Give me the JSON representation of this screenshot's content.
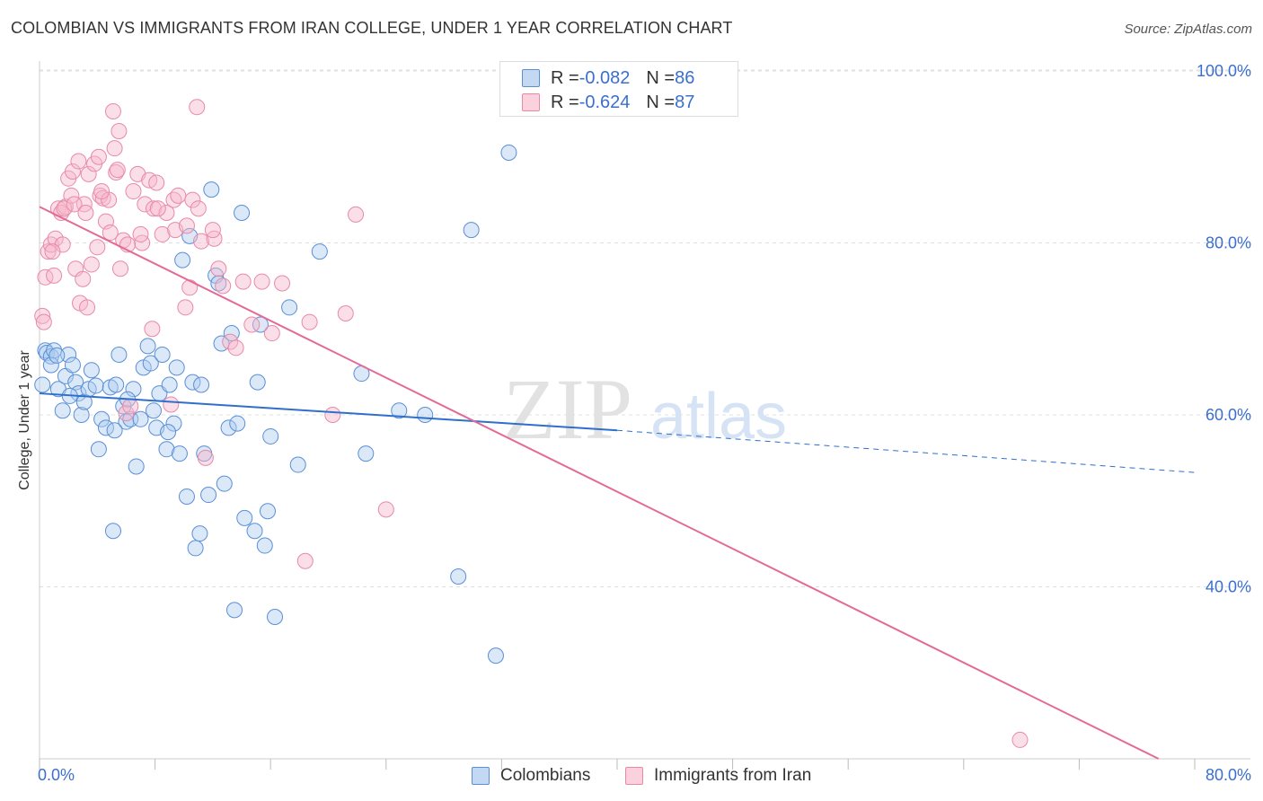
{
  "title": "COLOMBIAN VS IMMIGRANTS FROM IRAN COLLEGE, UNDER 1 YEAR CORRELATION CHART",
  "source": "Source: ZipAtlas.com",
  "watermark": {
    "zip": "ZIP",
    "atlas": "atlas"
  },
  "legend": {
    "rows": [
      {
        "r_label": "R = ",
        "r_value": "-0.082",
        "n_label": "N = ",
        "n_value": "86"
      },
      {
        "r_label": "R = ",
        "r_value": "-0.624",
        "n_label": "N = ",
        "n_value": "87"
      }
    ]
  },
  "bottom_legend": {
    "series1": "Colombians",
    "series2": "Immigrants from Iran"
  },
  "colors": {
    "blue_fill": "#aecbf0",
    "blue_stroke": "#5a8fd6",
    "blue_line": "#2f6fcc",
    "pink_fill": "#f6b8cb",
    "pink_stroke": "#e889a8",
    "pink_line": "#e46a95",
    "axis_label": "#3a6fd0",
    "grid": "#e0e0e0"
  },
  "chart_data": {
    "type": "scatter",
    "title": "COLOMBIAN VS IMMIGRANTS FROM IRAN COLLEGE, UNDER 1 YEAR CORRELATION CHART",
    "xlabel": "",
    "ylabel": "College, Under 1 year",
    "xlim": [
      0,
      80
    ],
    "ylim": [
      20,
      102
    ],
    "x_tick_labels": [
      "0.0%",
      "80.0%"
    ],
    "y_ticks": [
      40,
      60,
      80,
      100
    ],
    "y_tick_labels": [
      "40.0%",
      "60.0%",
      "80.0%",
      "100.0%"
    ],
    "grid": true,
    "legend_position": "top-center",
    "series": [
      {
        "name": "Colombians",
        "r": -0.082,
        "n": 86,
        "trend": {
          "x0": 0,
          "y0": 62.5,
          "x1": 40,
          "y1": 58.2,
          "dashed_to_x": 80,
          "dashed_to_y": 53.3
        },
        "points": [
          [
            0.2,
            63.5
          ],
          [
            0.4,
            67.5
          ],
          [
            0.5,
            67.2
          ],
          [
            0.8,
            66.8
          ],
          [
            1.0,
            67.5
          ],
          [
            1.3,
            63.0
          ],
          [
            1.6,
            60.5
          ],
          [
            1.8,
            64.5
          ],
          [
            2.0,
            67.0
          ],
          [
            2.3,
            65.8
          ],
          [
            2.5,
            63.8
          ],
          [
            2.7,
            62.5
          ],
          [
            2.9,
            60.0
          ],
          [
            3.1,
            61.5
          ],
          [
            3.4,
            63.0
          ],
          [
            3.6,
            65.2
          ],
          [
            3.9,
            63.4
          ],
          [
            4.1,
            56.0
          ],
          [
            4.3,
            59.5
          ],
          [
            4.6,
            58.5
          ],
          [
            4.9,
            63.2
          ],
          [
            5.1,
            46.5
          ],
          [
            5.3,
            63.5
          ],
          [
            5.5,
            67.0
          ],
          [
            5.8,
            61.0
          ],
          [
            6.0,
            59.2
          ],
          [
            6.3,
            59.5
          ],
          [
            6.5,
            63.0
          ],
          [
            6.7,
            54.0
          ],
          [
            7.0,
            59.5
          ],
          [
            7.2,
            65.5
          ],
          [
            7.5,
            68.0
          ],
          [
            7.7,
            66.0
          ],
          [
            7.9,
            60.5
          ],
          [
            8.1,
            58.5
          ],
          [
            8.3,
            62.5
          ],
          [
            8.5,
            67.0
          ],
          [
            8.8,
            56.0
          ],
          [
            9.0,
            63.5
          ],
          [
            9.3,
            59.0
          ],
          [
            9.5,
            65.5
          ],
          [
            9.7,
            55.5
          ],
          [
            9.9,
            78.0
          ],
          [
            10.2,
            50.5
          ],
          [
            10.4,
            80.8
          ],
          [
            10.6,
            63.8
          ],
          [
            10.8,
            44.5
          ],
          [
            11.1,
            46.2
          ],
          [
            11.2,
            63.5
          ],
          [
            11.4,
            55.5
          ],
          [
            11.7,
            50.7
          ],
          [
            11.9,
            86.2
          ],
          [
            12.2,
            76.2
          ],
          [
            12.4,
            75.3
          ],
          [
            12.6,
            68.3
          ],
          [
            12.8,
            52.0
          ],
          [
            13.1,
            58.5
          ],
          [
            13.3,
            69.5
          ],
          [
            13.5,
            37.3
          ],
          [
            13.7,
            59.0
          ],
          [
            14.0,
            83.5
          ],
          [
            14.2,
            48.0
          ],
          [
            14.9,
            46.5
          ],
          [
            15.1,
            63.8
          ],
          [
            15.3,
            70.5
          ],
          [
            15.6,
            44.8
          ],
          [
            15.8,
            48.8
          ],
          [
            16.0,
            57.5
          ],
          [
            16.3,
            36.5
          ],
          [
            17.3,
            72.5
          ],
          [
            17.9,
            54.2
          ],
          [
            19.4,
            79.0
          ],
          [
            22.3,
            64.8
          ],
          [
            22.6,
            55.5
          ],
          [
            24.9,
            60.5
          ],
          [
            26.7,
            60.0
          ],
          [
            29.0,
            41.2
          ],
          [
            29.9,
            81.5
          ],
          [
            31.6,
            32.0
          ],
          [
            32.5,
            90.5
          ],
          [
            8.9,
            58.0
          ],
          [
            6.1,
            61.8
          ],
          [
            5.2,
            58.2
          ],
          [
            0.8,
            65.8
          ],
          [
            1.2,
            66.9
          ],
          [
            2.1,
            62.2
          ]
        ]
      },
      {
        "name": "Immigrants from Iran",
        "r": -0.624,
        "n": 87,
        "trend": {
          "x0": 0,
          "y0": 84.2,
          "x1": 77.5,
          "y1": 20.0
        },
        "points": [
          [
            0.2,
            71.5
          ],
          [
            0.4,
            76.0
          ],
          [
            0.6,
            79.0
          ],
          [
            0.8,
            79.8
          ],
          [
            1.0,
            76.2
          ],
          [
            1.1,
            80.5
          ],
          [
            1.3,
            84.0
          ],
          [
            1.5,
            83.5
          ],
          [
            1.6,
            79.8
          ],
          [
            1.8,
            84.2
          ],
          [
            2.0,
            87.5
          ],
          [
            2.2,
            85.5
          ],
          [
            2.3,
            88.3
          ],
          [
            2.5,
            77.0
          ],
          [
            2.7,
            89.5
          ],
          [
            2.8,
            73.0
          ],
          [
            3.0,
            75.8
          ],
          [
            3.1,
            84.5
          ],
          [
            3.3,
            72.5
          ],
          [
            3.4,
            88.0
          ],
          [
            3.6,
            77.5
          ],
          [
            3.8,
            89.2
          ],
          [
            4.0,
            79.5
          ],
          [
            4.1,
            90.0
          ],
          [
            4.2,
            85.5
          ],
          [
            4.4,
            85.2
          ],
          [
            4.6,
            82.5
          ],
          [
            4.8,
            85.0
          ],
          [
            4.9,
            81.2
          ],
          [
            5.1,
            95.3
          ],
          [
            5.2,
            91.0
          ],
          [
            5.3,
            88.2
          ],
          [
            5.5,
            93.0
          ],
          [
            5.6,
            77.0
          ],
          [
            5.8,
            80.3
          ],
          [
            6.0,
            60.2
          ],
          [
            6.3,
            61.0
          ],
          [
            6.5,
            86.0
          ],
          [
            6.8,
            88.0
          ],
          [
            7.1,
            80.0
          ],
          [
            7.3,
            84.5
          ],
          [
            7.6,
            87.3
          ],
          [
            7.8,
            70.0
          ],
          [
            7.9,
            84.0
          ],
          [
            8.1,
            87.0
          ],
          [
            8.5,
            81.0
          ],
          [
            8.8,
            83.5
          ],
          [
            9.1,
            61.2
          ],
          [
            9.3,
            85.0
          ],
          [
            9.6,
            85.5
          ],
          [
            10.1,
            72.5
          ],
          [
            10.4,
            74.8
          ],
          [
            10.6,
            85.0
          ],
          [
            10.9,
            95.8
          ],
          [
            11.2,
            80.2
          ],
          [
            11.5,
            55.0
          ],
          [
            12.1,
            80.5
          ],
          [
            12.4,
            77.0
          ],
          [
            12.7,
            75.0
          ],
          [
            13.2,
            68.5
          ],
          [
            13.6,
            67.8
          ],
          [
            14.1,
            75.5
          ],
          [
            14.7,
            70.5
          ],
          [
            15.4,
            75.5
          ],
          [
            16.1,
            69.5
          ],
          [
            16.8,
            75.3
          ],
          [
            18.7,
            70.8
          ],
          [
            18.4,
            43.0
          ],
          [
            20.3,
            60.0
          ],
          [
            21.2,
            71.8
          ],
          [
            21.9,
            83.3
          ],
          [
            24.0,
            49.0
          ],
          [
            67.9,
            22.2
          ],
          [
            0.3,
            70.8
          ],
          [
            0.9,
            79.0
          ],
          [
            1.7,
            84.0
          ],
          [
            2.4,
            84.5
          ],
          [
            3.2,
            83.5
          ],
          [
            4.3,
            86.0
          ],
          [
            5.4,
            88.5
          ],
          [
            6.1,
            79.8
          ],
          [
            7.0,
            81.0
          ],
          [
            8.2,
            84.0
          ],
          [
            9.4,
            81.5
          ],
          [
            10.2,
            82.0
          ],
          [
            11.0,
            84.0
          ],
          [
            12.0,
            81.5
          ]
        ]
      }
    ]
  }
}
